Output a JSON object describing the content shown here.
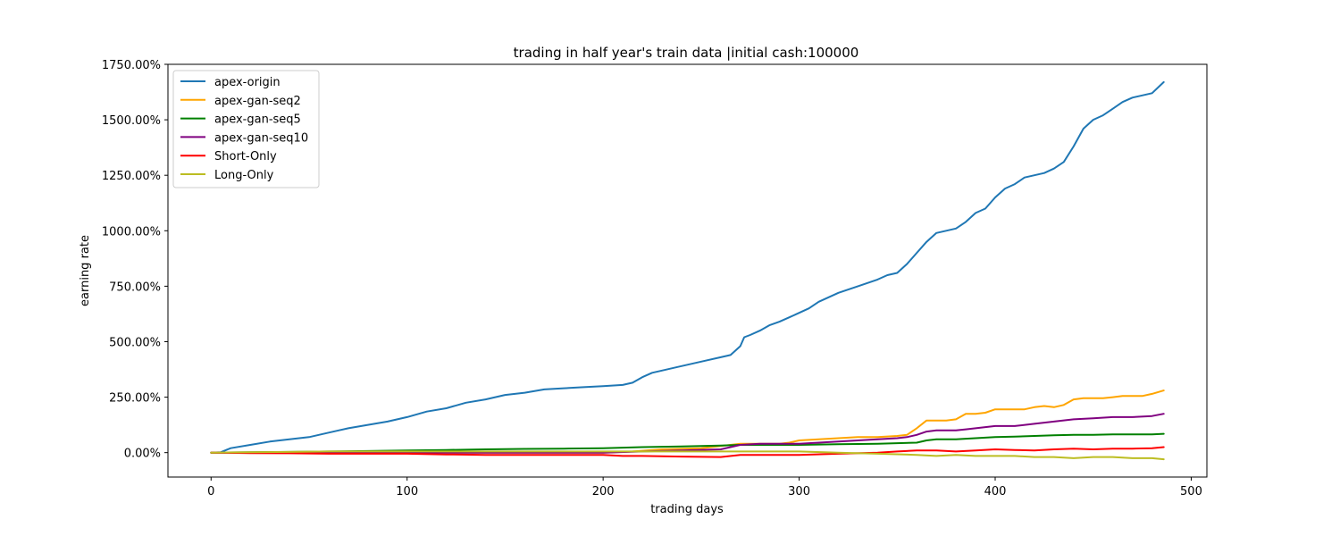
{
  "chart_data": {
    "type": "line",
    "title": "trading in half year's train data |initial cash:100000",
    "xlabel": "trading days",
    "ylabel": "earning rate",
    "xlim": [
      -22,
      508
    ],
    "ylim": [
      -110,
      1750
    ],
    "xticks": [
      0,
      100,
      200,
      300,
      400,
      500
    ],
    "xtick_labels": [
      "0",
      "100",
      "200",
      "300",
      "400",
      "500"
    ],
    "yticks": [
      0,
      250,
      500,
      750,
      1000,
      1250,
      1500,
      1750
    ],
    "ytick_labels": [
      "0.00%",
      "250.00%",
      "500.00%",
      "750.00%",
      "1000.00%",
      "1250.00%",
      "1500.00%",
      "1750.00%"
    ],
    "grid": false,
    "legend_position": "top-left",
    "series": [
      {
        "name": "apex-origin",
        "color": "#1f77b4",
        "x": [
          0,
          5,
          10,
          20,
          30,
          40,
          50,
          60,
          70,
          80,
          90,
          100,
          110,
          120,
          130,
          140,
          150,
          160,
          170,
          180,
          190,
          200,
          210,
          215,
          220,
          225,
          230,
          240,
          250,
          260,
          265,
          270,
          272,
          275,
          280,
          285,
          290,
          295,
          300,
          305,
          310,
          315,
          320,
          330,
          340,
          345,
          350,
          355,
          360,
          365,
          370,
          375,
          380,
          385,
          390,
          395,
          400,
          405,
          410,
          415,
          420,
          425,
          430,
          435,
          440,
          445,
          450,
          455,
          460,
          465,
          470,
          475,
          480,
          486
        ],
        "y": [
          0,
          2,
          20,
          35,
          50,
          60,
          70,
          90,
          110,
          125,
          140,
          160,
          185,
          200,
          225,
          240,
          260,
          270,
          285,
          290,
          295,
          300,
          305,
          315,
          340,
          360,
          370,
          390,
          410,
          430,
          440,
          480,
          520,
          530,
          550,
          575,
          590,
          610,
          630,
          650,
          680,
          700,
          720,
          750,
          780,
          800,
          810,
          850,
          900,
          950,
          990,
          1000,
          1010,
          1040,
          1080,
          1100,
          1150,
          1190,
          1210,
          1240,
          1250,
          1260,
          1280,
          1310,
          1380,
          1460,
          1500,
          1520,
          1550,
          1580,
          1600,
          1610,
          1620,
          1670
        ]
      },
      {
        "name": "apex-gan-seq2",
        "color": "#ffa500",
        "x": [
          0,
          50,
          100,
          150,
          200,
          215,
          230,
          250,
          270,
          290,
          295,
          300,
          310,
          320,
          330,
          340,
          350,
          355,
          360,
          365,
          370,
          375,
          380,
          385,
          390,
          395,
          400,
          405,
          410,
          415,
          420,
          425,
          430,
          435,
          440,
          445,
          450,
          455,
          460,
          465,
          470,
          475,
          480,
          486
        ],
        "y": [
          0,
          0,
          0,
          0,
          0,
          5,
          15,
          20,
          40,
          40,
          45,
          55,
          60,
          65,
          70,
          70,
          75,
          80,
          110,
          145,
          145,
          145,
          150,
          175,
          175,
          180,
          195,
          195,
          195,
          195,
          205,
          210,
          205,
          215,
          240,
          245,
          245,
          245,
          250,
          255,
          255,
          255,
          265,
          280
        ]
      },
      {
        "name": "apex-gan-seq5",
        "color": "#008000",
        "x": [
          0,
          20,
          40,
          60,
          80,
          100,
          120,
          140,
          160,
          180,
          200,
          220,
          240,
          260,
          270,
          280,
          300,
          320,
          340,
          360,
          365,
          370,
          380,
          390,
          400,
          410,
          420,
          430,
          440,
          450,
          460,
          470,
          480,
          486
        ],
        "y": [
          0,
          2,
          3,
          5,
          7,
          10,
          12,
          15,
          17,
          18,
          20,
          25,
          28,
          32,
          35,
          35,
          35,
          38,
          40,
          45,
          55,
          60,
          60,
          65,
          70,
          72,
          75,
          78,
          80,
          80,
          82,
          82,
          82,
          85
        ]
      },
      {
        "name": "apex-gan-seq10",
        "color": "#800080",
        "x": [
          0,
          50,
          100,
          150,
          200,
          220,
          240,
          260,
          270,
          280,
          290,
          300,
          310,
          320,
          330,
          340,
          350,
          355,
          360,
          365,
          370,
          380,
          385,
          390,
          400,
          410,
          420,
          430,
          440,
          450,
          460,
          470,
          480,
          486
        ],
        "y": [
          0,
          0,
          0,
          0,
          0,
          5,
          10,
          15,
          35,
          40,
          40,
          40,
          45,
          50,
          55,
          60,
          65,
          70,
          80,
          95,
          100,
          100,
          105,
          110,
          120,
          120,
          130,
          140,
          150,
          155,
          160,
          160,
          165,
          175
        ]
      },
      {
        "name": "Short-Only",
        "color": "#ff0000",
        "x": [
          0,
          20,
          40,
          60,
          80,
          100,
          120,
          140,
          160,
          180,
          200,
          210,
          220,
          240,
          260,
          270,
          280,
          300,
          320,
          340,
          350,
          360,
          370,
          380,
          390,
          400,
          410,
          420,
          430,
          440,
          450,
          460,
          470,
          480,
          486
        ],
        "y": [
          0,
          -2,
          -3,
          -5,
          -5,
          -5,
          -8,
          -10,
          -10,
          -10,
          -10,
          -15,
          -15,
          -18,
          -20,
          -10,
          -10,
          -10,
          -5,
          0,
          5,
          10,
          10,
          5,
          10,
          15,
          12,
          10,
          15,
          18,
          15,
          18,
          18,
          20,
          25
        ]
      },
      {
        "name": "Long-Only",
        "color": "#bcbd22",
        "x": [
          0,
          20,
          40,
          60,
          80,
          100,
          120,
          140,
          160,
          180,
          200,
          220,
          240,
          260,
          280,
          300,
          320,
          340,
          360,
          370,
          380,
          390,
          400,
          410,
          420,
          430,
          440,
          450,
          460,
          470,
          480,
          486
        ],
        "y": [
          0,
          2,
          3,
          5,
          5,
          5,
          5,
          5,
          5,
          5,
          5,
          5,
          5,
          5,
          5,
          5,
          0,
          -5,
          -10,
          -15,
          -10,
          -15,
          -15,
          -15,
          -20,
          -20,
          -25,
          -20,
          -20,
          -25,
          -25,
          -30
        ]
      }
    ]
  }
}
